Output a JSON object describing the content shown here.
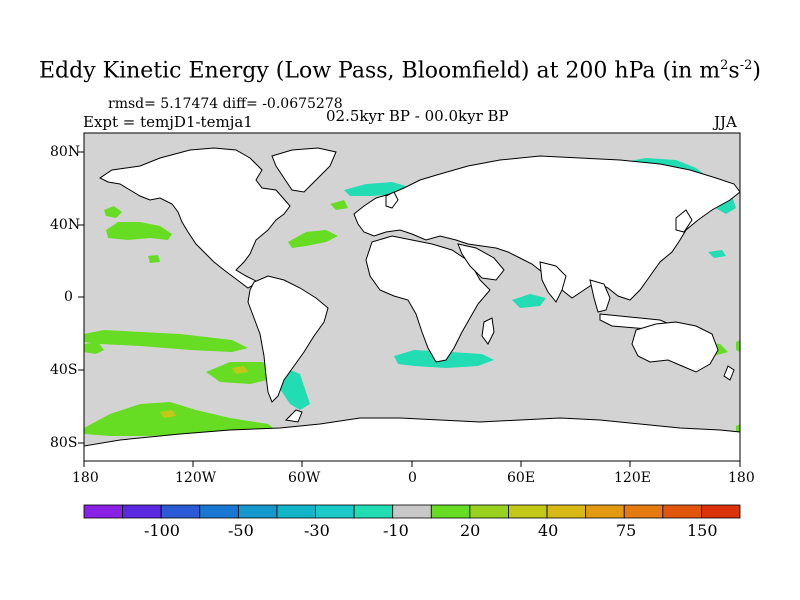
{
  "figure": {
    "title_main": "Eddy Kinetic Energy (Low Pass, Bloomfield) at 200 hPa (in m",
    "title_sup1": "2",
    "title_mid": "s",
    "title_sup2": "-2",
    "title_end": ")",
    "stats": "rmsd= 5.17474 diff= -0.0675278",
    "expt": "Expt = temjD1-temja1",
    "period": "02.5kyr BP - 00.0kyr BP",
    "season": "JJA"
  },
  "map": {
    "land_color": "#ffffff",
    "ocean_color": "#d3d3d3",
    "lat_labels": [
      "80N",
      "40N",
      "0",
      "40S",
      "80S"
    ],
    "lon_labels": [
      "180",
      "120W",
      "60W",
      "0",
      "60E",
      "120E",
      "180"
    ]
  },
  "anomalies": [
    {
      "name": "north-pacific-west",
      "level": 20,
      "lon": -160,
      "lat": 35
    },
    {
      "name": "bering-cyan",
      "level": -10,
      "lon": 140,
      "lat": 67
    },
    {
      "name": "north-atlantic-green",
      "level": 20,
      "lon": -45,
      "lat": 38
    },
    {
      "name": "south-atlantic-cyan",
      "level": -10,
      "lon": 10,
      "lat": -37
    },
    {
      "name": "south-pacific-green",
      "level": 20,
      "lon": -95,
      "lat": -43
    },
    {
      "name": "southern-ocean-green",
      "level": 20,
      "lon": -140,
      "lat": -68
    },
    {
      "name": "australia-green",
      "level": 20,
      "lon": 150,
      "lat": -30
    }
  ],
  "colorbar": {
    "colors": [
      "#8a20e6",
      "#5a28e0",
      "#2a5ad6",
      "#1a78d4",
      "#1497cc",
      "#12b4c8",
      "#1cc9c9",
      "#22dcb4",
      "#c8c8c8",
      "#66dd22",
      "#99d21e",
      "#c3c818",
      "#d8b814",
      "#e49a10",
      "#e47a10",
      "#e2560c",
      "#dc320a"
    ],
    "labels": [
      "-100",
      "-50",
      "-30",
      "-10",
      "20",
      "40",
      "75",
      "150"
    ]
  }
}
